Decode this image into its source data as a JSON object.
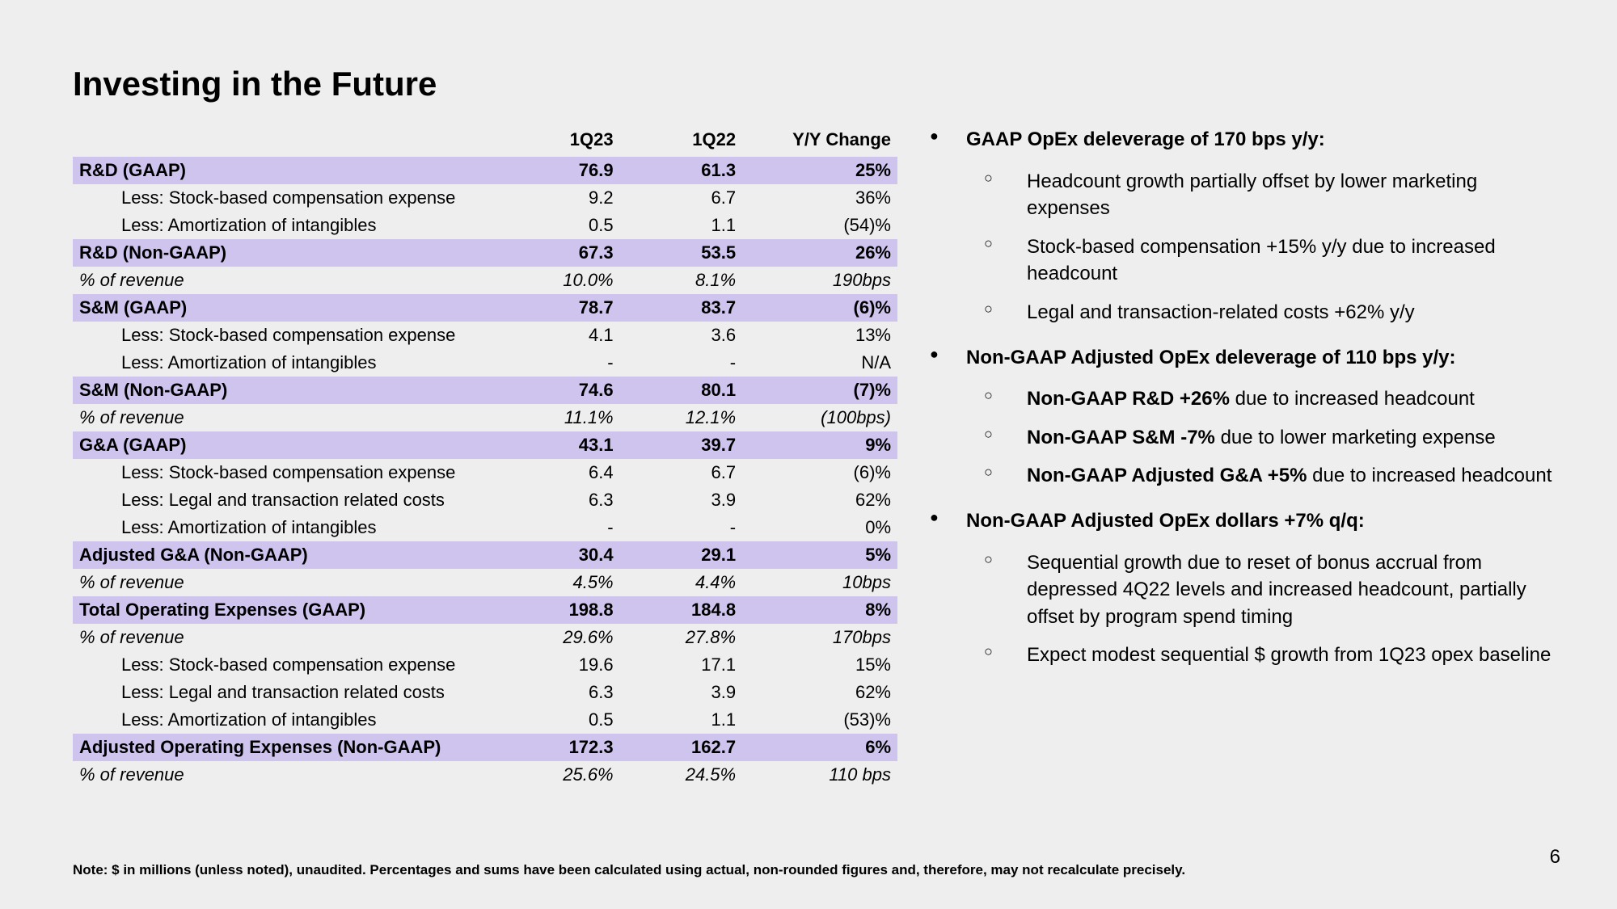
{
  "title": "Investing in the Future",
  "pageNumber": "6",
  "footnote": "Note: $ in millions (unless noted), unaudited. Percentages and sums have been calculated using actual, non-rounded figures and, therefore, may not recalculate precisely.",
  "table": {
    "columns": [
      "",
      "1Q23",
      "1Q22",
      "Y/Y Change"
    ],
    "rows": [
      {
        "style": "highlight",
        "cells": [
          "R&D (GAAP)",
          "76.9",
          "61.3",
          "25%"
        ]
      },
      {
        "style": "indent",
        "cells": [
          "Less: Stock-based compensation expense",
          "9.2",
          "6.7",
          "36%"
        ]
      },
      {
        "style": "indent",
        "cells": [
          "Less: Amortization of intangibles",
          "0.5",
          "1.1",
          "(54)%"
        ]
      },
      {
        "style": "highlight",
        "cells": [
          "R&D (Non-GAAP)",
          "67.3",
          "53.5",
          "26%"
        ]
      },
      {
        "style": "italic",
        "cells": [
          "% of revenue",
          "10.0%",
          "8.1%",
          "190bps"
        ]
      },
      {
        "style": "highlight",
        "cells": [
          "S&M (GAAP)",
          "78.7",
          "83.7",
          "(6)%"
        ]
      },
      {
        "style": "indent",
        "cells": [
          "Less: Stock-based compensation expense",
          "4.1",
          "3.6",
          "13%"
        ]
      },
      {
        "style": "indent",
        "cells": [
          "Less: Amortization of intangibles",
          "-",
          "-",
          "N/A"
        ]
      },
      {
        "style": "highlight",
        "cells": [
          "S&M (Non-GAAP)",
          "74.6",
          "80.1",
          "(7)%"
        ]
      },
      {
        "style": "italic",
        "cells": [
          "% of revenue",
          "11.1%",
          "12.1%",
          "(100bps)"
        ]
      },
      {
        "style": "highlight",
        "cells": [
          "G&A (GAAP)",
          "43.1",
          "39.7",
          "9%"
        ]
      },
      {
        "style": "indent",
        "cells": [
          "Less: Stock-based compensation expense",
          "6.4",
          "6.7",
          "(6)%"
        ]
      },
      {
        "style": "indent",
        "cells": [
          "Less: Legal and transaction related costs",
          "6.3",
          "3.9",
          "62%"
        ]
      },
      {
        "style": "indent",
        "cells": [
          "Less: Amortization of intangibles",
          "-",
          "-",
          "0%"
        ]
      },
      {
        "style": "highlight",
        "cells": [
          "Adjusted G&A (Non-GAAP)",
          "30.4",
          "29.1",
          "5%"
        ]
      },
      {
        "style": "italic",
        "cells": [
          "% of revenue",
          "4.5%",
          "4.4%",
          "10bps"
        ]
      },
      {
        "style": "highlight",
        "cells": [
          "Total Operating Expenses (GAAP)",
          "198.8",
          "184.8",
          "8%"
        ]
      },
      {
        "style": "italic",
        "cells": [
          "% of revenue",
          "29.6%",
          "27.8%",
          "170bps"
        ]
      },
      {
        "style": "indent",
        "cells": [
          "Less: Stock-based compensation expense",
          "19.6",
          "17.1",
          "15%"
        ]
      },
      {
        "style": "indent",
        "cells": [
          "Less: Legal and transaction related costs",
          "6.3",
          "3.9",
          "62%"
        ]
      },
      {
        "style": "indent",
        "cells": [
          "Less: Amortization of intangibles",
          "0.5",
          "1.1",
          "(53)%"
        ]
      },
      {
        "style": "highlight",
        "cells": [
          "Adjusted Operating Expenses (Non-GAAP)",
          "172.3",
          "162.7",
          "6%"
        ]
      },
      {
        "style": "italic",
        "cells": [
          "% of revenue",
          "25.6%",
          "24.5%",
          "110 bps"
        ]
      }
    ],
    "highlight_color": "#cfc4ee",
    "background_color": "#eeeeee",
    "font_size": 22
  },
  "bullets": [
    {
      "header": "GAAP OpEx deleverage of 170 bps y/y:",
      "subs": [
        {
          "lead": "",
          "text": "Headcount growth partially offset by lower marketing expenses"
        },
        {
          "lead": "",
          "text": "Stock-based compensation +15% y/y due to increased headcount"
        },
        {
          "lead": "",
          "text": "Legal and transaction-related costs +62% y/y"
        }
      ]
    },
    {
      "header": "Non-GAAP Adjusted OpEx deleverage of 110 bps y/y:",
      "subs": [
        {
          "lead": "Non-GAAP R&D +26%",
          "text": " due to increased headcount"
        },
        {
          "lead": "Non-GAAP S&M -7%",
          "text": " due to lower marketing expense"
        },
        {
          "lead": "Non-GAAP Adjusted G&A +5%",
          "text": " due to increased headcount"
        }
      ]
    },
    {
      "header": "Non-GAAP Adjusted OpEx dollars +7% q/q:",
      "subs": [
        {
          "lead": "",
          "text": "Sequential growth due to reset of bonus accrual from depressed 4Q22 levels and increased headcount, partially offset by program spend timing"
        },
        {
          "lead": "",
          "text": "Expect modest sequential $ growth from 1Q23 opex baseline"
        }
      ]
    }
  ]
}
